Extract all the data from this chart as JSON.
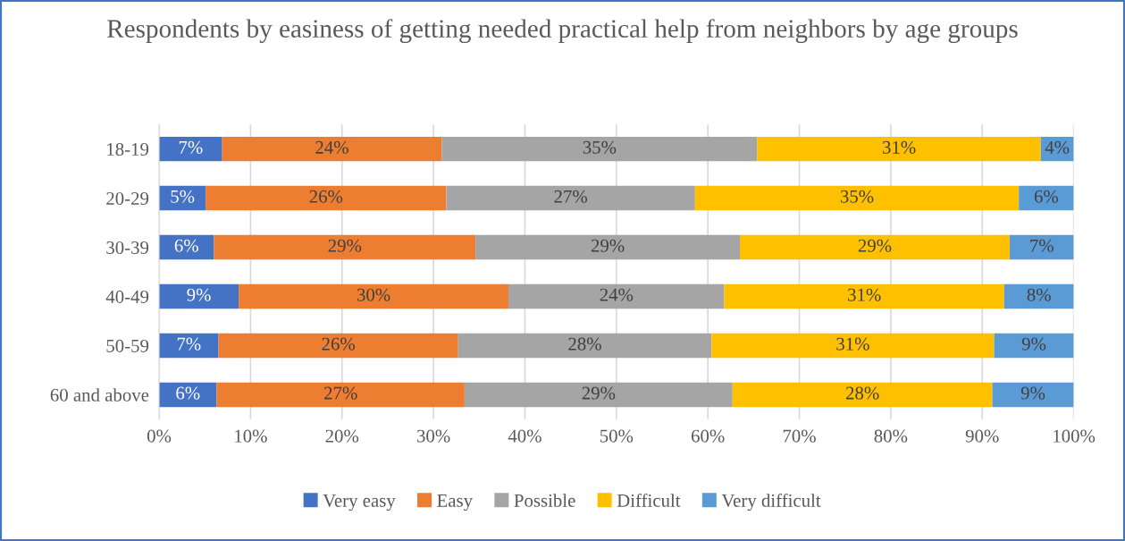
{
  "chart_data": {
    "type": "bar",
    "orientation": "horizontal",
    "stacked": true,
    "title": "Respondents by easiness of getting needed practical help from neighbors by age groups",
    "categories": [
      "18-19",
      "20-29",
      "30-39",
      "40-49",
      "50-59",
      "60 and above"
    ],
    "series": [
      {
        "name": "Very easy",
        "color": "#4472c4",
        "values": [
          6.9,
          5.1,
          6.0,
          8.7,
          6.5,
          6.3
        ],
        "value_labels": [
          "7%",
          "5%",
          "6%",
          "9%",
          "7%",
          "6%"
        ]
      },
      {
        "name": "Easy",
        "color": "#ed7d31",
        "values": [
          24.0,
          26.3,
          28.6,
          29.5,
          26.2,
          27.1
        ],
        "value_labels": [
          "24%",
          "26%",
          "29%",
          "30%",
          "26%",
          "27%"
        ]
      },
      {
        "name": "Possible",
        "color": "#a5a5a5",
        "values": [
          34.5,
          27.2,
          28.9,
          23.6,
          27.7,
          29.3
        ],
        "value_labels": [
          "35%",
          "27%",
          "29%",
          "24%",
          "28%",
          "29%"
        ]
      },
      {
        "name": "Difficult",
        "color": "#ffc000",
        "values": [
          31.0,
          35.4,
          29.5,
          30.6,
          30.9,
          28.4
        ],
        "value_labels": [
          "31%",
          "35%",
          "29%",
          "31%",
          "31%",
          "28%"
        ]
      },
      {
        "name": "Very difficult",
        "color": "#5b9bd5",
        "values": [
          3.6,
          6.0,
          7.0,
          7.6,
          8.7,
          8.9
        ],
        "value_labels": [
          "4%",
          "6%",
          "7%",
          "8%",
          "9%",
          "9%"
        ]
      }
    ],
    "xlim": [
      0,
      100
    ],
    "xticks": [
      {
        "value": 0,
        "label": "0%"
      },
      {
        "value": 10,
        "label": "10%"
      },
      {
        "value": 20,
        "label": "20%"
      },
      {
        "value": 30,
        "label": "30%"
      },
      {
        "value": 40,
        "label": "40%"
      },
      {
        "value": 50,
        "label": "50%"
      },
      {
        "value": 60,
        "label": "60%"
      },
      {
        "value": 70,
        "label": "70%"
      },
      {
        "value": 80,
        "label": "80%"
      },
      {
        "value": 90,
        "label": "90%"
      },
      {
        "value": 100,
        "label": "100%"
      }
    ],
    "grid": "x",
    "legend": "bottom"
  }
}
